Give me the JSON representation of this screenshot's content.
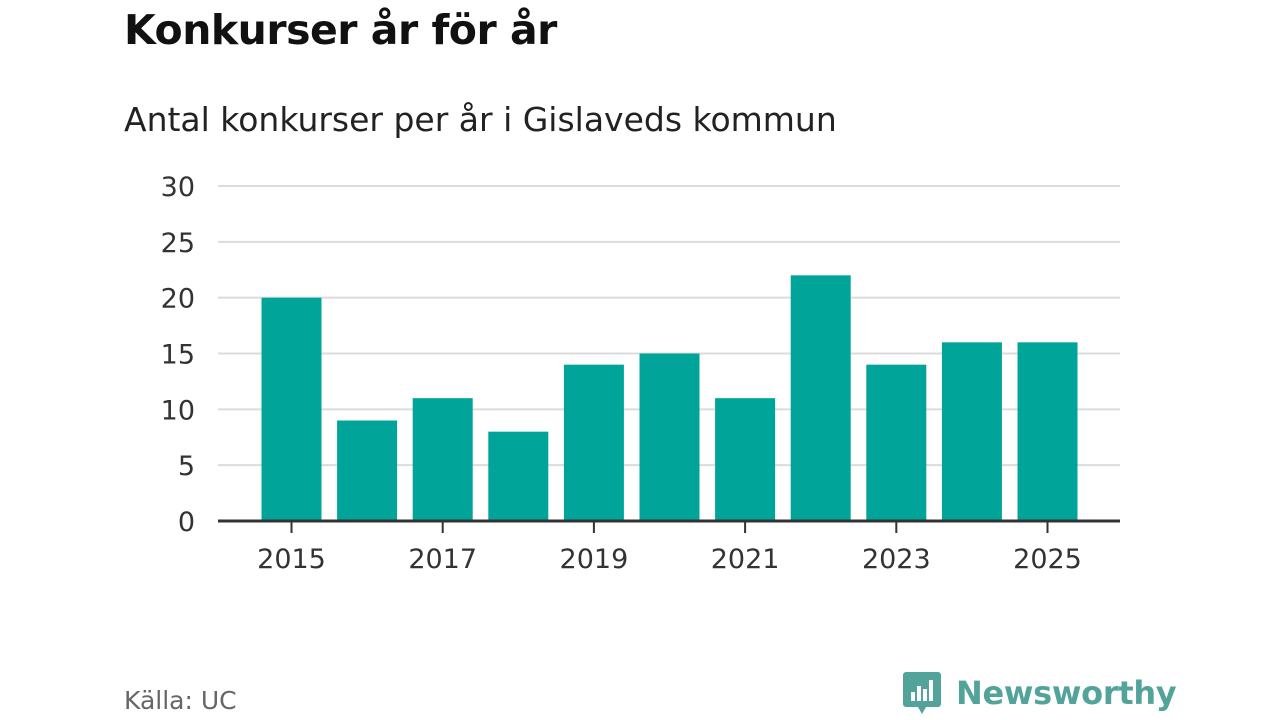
{
  "header": {
    "title": "Konkurser år för år",
    "subtitle": "Antal konkurser per år i Gislaveds kommun"
  },
  "footer": {
    "source": "Källa: UC",
    "brand": "Newsworthy",
    "brand_icon": "bar-chart-bubble-icon"
  },
  "colors": {
    "bar": "#00a499",
    "grid": "#dcdcdc",
    "axis": "#333333",
    "brand": "#52a39a"
  },
  "chart_data": {
    "type": "bar",
    "categories": [
      "2015",
      "2016",
      "2017",
      "2018",
      "2019",
      "2020",
      "2021",
      "2022",
      "2023",
      "2024",
      "2025"
    ],
    "values": [
      20,
      9,
      11,
      8,
      14,
      15,
      11,
      22,
      14,
      16,
      16
    ],
    "x_tick_labels": [
      "2015",
      "2017",
      "2019",
      "2021",
      "2023",
      "2025"
    ],
    "y_ticks": [
      0,
      5,
      10,
      15,
      20,
      25,
      30
    ],
    "ylim": [
      0,
      30
    ],
    "title": "Konkurser år för år",
    "subtitle": "Antal konkurser per år i Gislaveds kommun",
    "xlabel": "",
    "ylabel": "",
    "grid": true,
    "legend": "none"
  }
}
